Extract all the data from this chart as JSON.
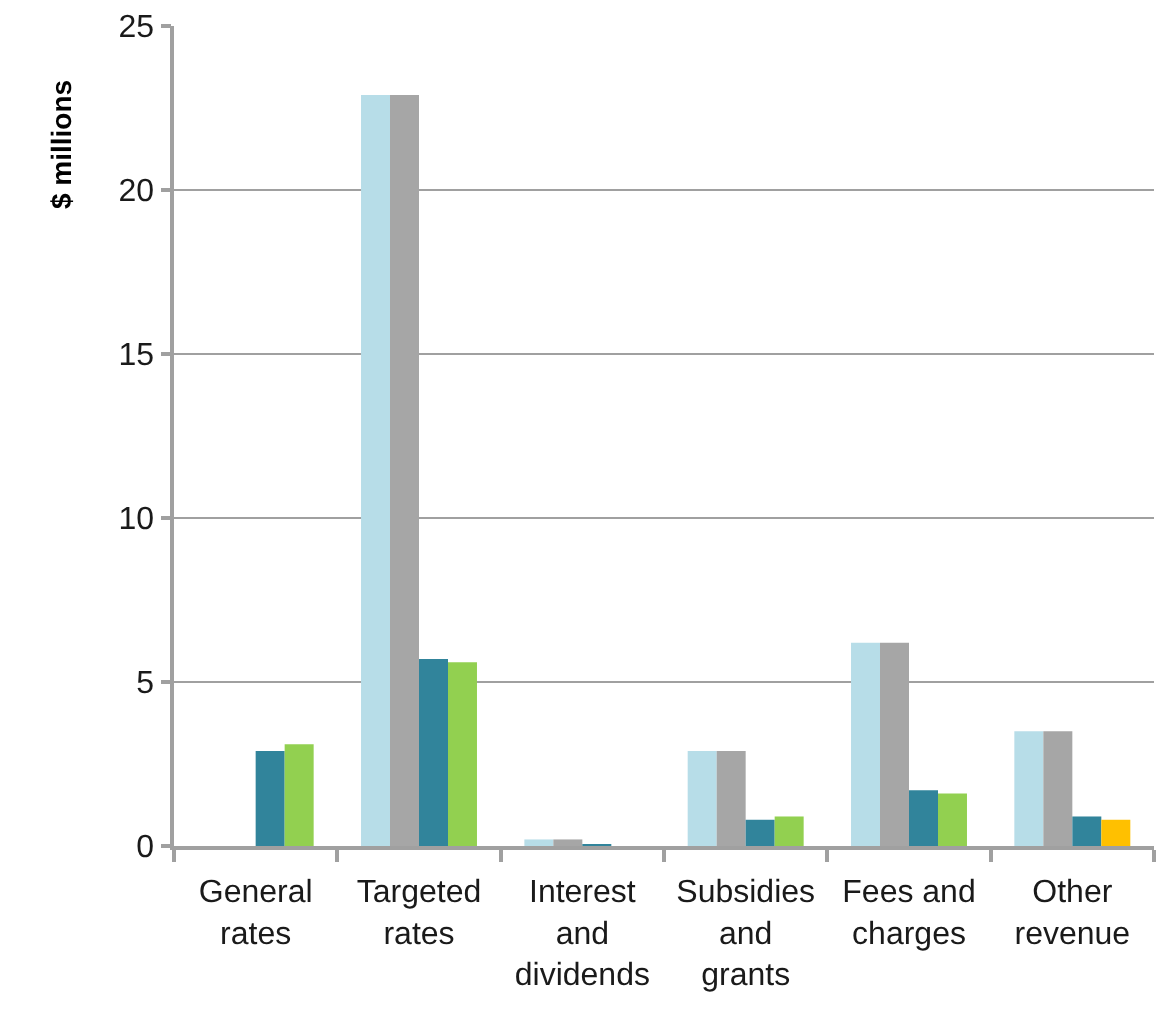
{
  "chart_data": {
    "type": "bar",
    "ylabel": "$ millions",
    "categories": [
      "General rates",
      "Targeted rates",
      "Interest and dividends",
      "Subsidies and grants",
      "Fees and charges",
      "Other revenue"
    ],
    "series": [
      {
        "color": "#b7dde8",
        "values": [
          0,
          22.9,
          0.2,
          2.9,
          6.2,
          3.5
        ]
      },
      {
        "color": "#a6a6a6",
        "values": [
          0,
          22.9,
          0.2,
          2.9,
          6.2,
          3.5
        ]
      },
      {
        "color": "#31849b",
        "values": [
          2.9,
          5.7,
          0.05,
          0.8,
          1.7,
          0.9
        ]
      },
      {
        "color": "#92d050",
        "colors": [
          "#92d050",
          "#92d050",
          "#92d050",
          "#92d050",
          "#92d050",
          "#ffc000"
        ],
        "values": [
          3.1,
          5.6,
          0,
          0.9,
          1.6,
          0.8
        ]
      }
    ],
    "ylim": [
      0,
      25
    ],
    "yticks": [
      0,
      5,
      10,
      15,
      20,
      25
    ],
    "grid": "y"
  }
}
